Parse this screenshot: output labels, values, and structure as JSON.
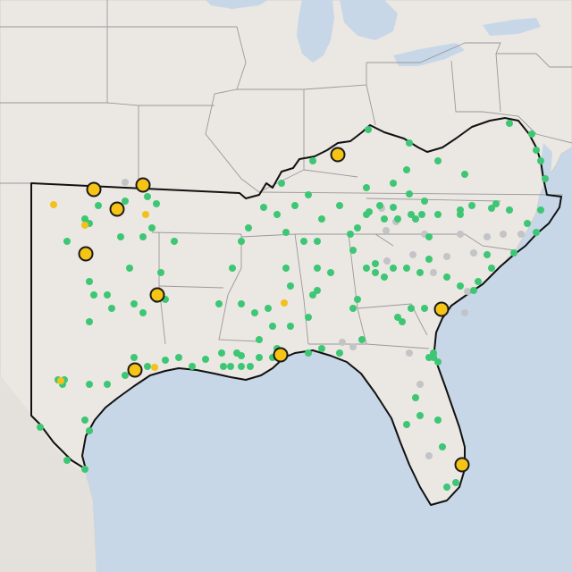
{
  "map": {
    "colors": {
      "land": "#ebe7e3",
      "land_outside": "#e4e0dc",
      "water": "#c7d7e8",
      "state_border": "#9a9a9a",
      "region_outline": "#111111",
      "marker_active": "#3dc774",
      "marker_inactive": "#c2c4c6",
      "marker_small_highlight": "#f3c11c",
      "marker_large_highlight": "#f6c414",
      "marker_large_stroke": "#1a1a1a"
    },
    "icons": {
      "active": "green-dot-icon",
      "inactive": "gray-dot-icon",
      "small_highlight": "small-yellow-dot-icon",
      "large_highlight": "large-yellow-circle-icon"
    }
  }
}
